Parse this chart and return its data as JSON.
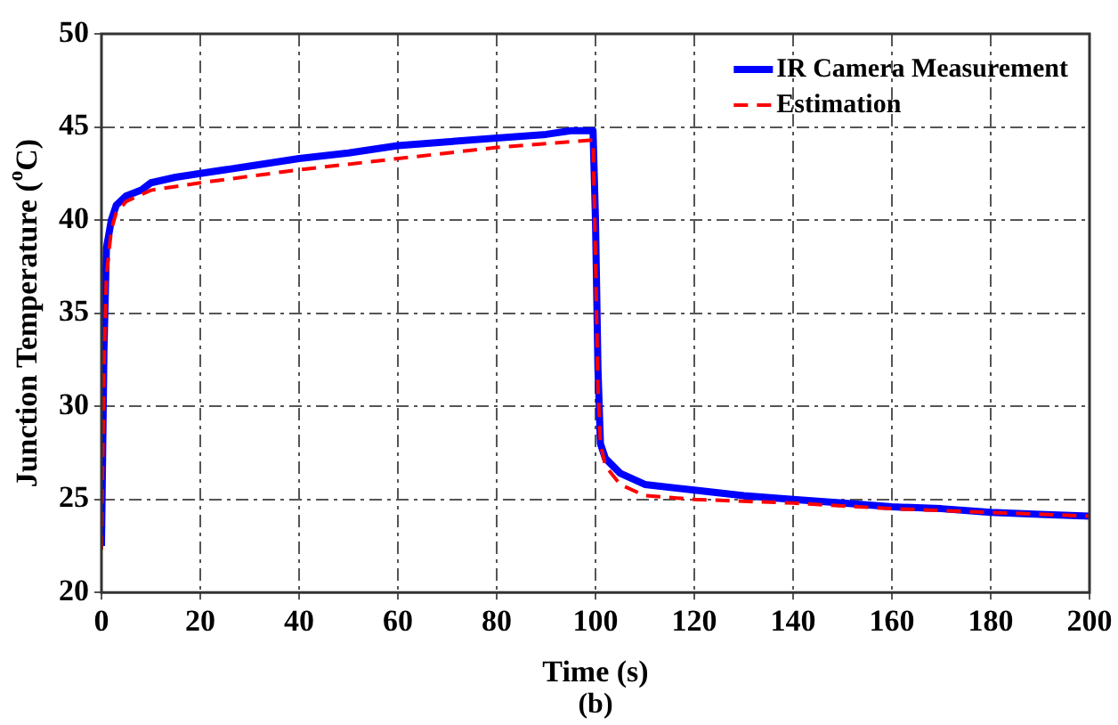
{
  "chart_data": {
    "type": "line",
    "xlabel": "Time (s)",
    "ylabel": "Junction Temperature ($^{o}$C)",
    "annotations": [
      "(b)"
    ],
    "xlim": [
      0,
      200
    ],
    "xticks": [
      0,
      20,
      40,
      60,
      80,
      100,
      120,
      140,
      160,
      180,
      200
    ],
    "ylim": [
      20,
      50
    ],
    "yticks": [
      20,
      25,
      30,
      35,
      40,
      45,
      50
    ],
    "grid": true,
    "legend": "top right",
    "marker": "none",
    "series": [
      {
        "name": "IR Camera Measurement",
        "color": "#0000ff",
        "line_style": "solid",
        "x": [
          0,
          0.5,
          1,
          2,
          3,
          5,
          8,
          10,
          15,
          20,
          30,
          40,
          50,
          60,
          70,
          80,
          90,
          95,
          99.5,
          100,
          100.5,
          101,
          102,
          105,
          110,
          120,
          130,
          140,
          150,
          160,
          170,
          180,
          190,
          200
        ],
        "values": [
          22.5,
          33,
          38.5,
          40,
          40.8,
          41.3,
          41.6,
          42,
          42.3,
          42.5,
          42.9,
          43.3,
          43.6,
          44,
          44.2,
          44.4,
          44.6,
          44.8,
          44.8,
          40,
          32,
          28,
          27.2,
          26.4,
          25.8,
          25.5,
          25.2,
          25,
          24.8,
          24.6,
          24.5,
          24.3,
          24.2,
          24.1
        ]
      },
      {
        "name": "Estimation",
        "color": "#ff0000",
        "line_style": "dashed",
        "x": [
          0,
          0.5,
          1,
          2,
          3,
          5,
          10,
          20,
          40,
          60,
          80,
          99.5,
          100,
          100.5,
          101,
          102,
          105,
          110,
          120,
          140,
          160,
          180,
          200
        ],
        "values": [
          22.3,
          32,
          37,
          39.5,
          40.4,
          41,
          41.6,
          42,
          42.7,
          43.3,
          43.9,
          44.3,
          38,
          31,
          28,
          26.8,
          25.8,
          25.2,
          25,
          24.8,
          24.5,
          24.3,
          24.1
        ]
      }
    ]
  }
}
